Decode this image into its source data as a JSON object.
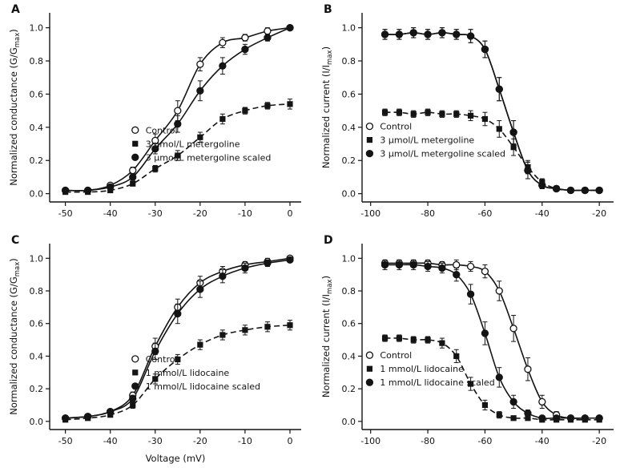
{
  "figure": {
    "background": "#ffffff",
    "ink": "#141414"
  },
  "panels": [
    {
      "letter": "A"
    },
    {
      "letter": "B"
    },
    {
      "letter": "C"
    },
    {
      "letter": "D"
    }
  ],
  "chart_data": [
    {
      "id": "A",
      "type": "scatter",
      "title": "",
      "xlabel": "",
      "ylabel_parts": [
        {
          "t": "Normalized conductance (G/G"
        },
        {
          "t": "max",
          "sub": true
        },
        {
          "t": ")"
        }
      ],
      "xlim": [
        -53.5,
        2.5
      ],
      "xticks": [
        -50,
        -40,
        -30,
        -20,
        -10,
        0
      ],
      "ylim": [
        -0.05,
        1.09
      ],
      "yticks": [
        0,
        0.2,
        0.4,
        0.6,
        0.8,
        1
      ],
      "x": [
        -50,
        -45,
        -40,
        -35,
        -30,
        -25,
        -20,
        -15,
        -10,
        -5,
        0
      ],
      "legend": {
        "fx": 0.34,
        "fy": 0.62
      },
      "series": [
        {
          "name": "Control",
          "marker": "open-circle",
          "line": "solid",
          "values": [
            0.02,
            0.02,
            0.05,
            0.14,
            0.32,
            0.5,
            0.78,
            0.91,
            0.94,
            0.98,
            1.0
          ],
          "errors": [
            0.01,
            0.01,
            0.01,
            0.02,
            0.04,
            0.06,
            0.04,
            0.03,
            0.02,
            0.02,
            0.01
          ]
        },
        {
          "name": "3 μmol/L metergoline",
          "marker": "filled-square",
          "line": "dashed",
          "values": [
            0.01,
            0.01,
            0.02,
            0.06,
            0.15,
            0.23,
            0.34,
            0.45,
            0.5,
            0.53,
            0.54
          ],
          "errors": [
            0.01,
            0.01,
            0.01,
            0.01,
            0.02,
            0.03,
            0.03,
            0.03,
            0.02,
            0.02,
            0.03
          ]
        },
        {
          "name": "3 μmol/L metergoline scaled",
          "marker": "filled-circle",
          "line": "solid",
          "values": [
            0.02,
            0.02,
            0.04,
            0.1,
            0.27,
            0.42,
            0.62,
            0.77,
            0.87,
            0.94,
            1.0
          ],
          "errors": [
            0.01,
            0.01,
            0.01,
            0.02,
            0.03,
            0.05,
            0.06,
            0.05,
            0.03,
            0.02,
            0.01
          ]
        }
      ]
    },
    {
      "id": "B",
      "type": "scatter",
      "title": "",
      "xlabel": "",
      "ylabel_parts": [
        {
          "t": "Normalized current (I/I"
        },
        {
          "t": "max",
          "sub": true
        },
        {
          "t": ")"
        }
      ],
      "xlim": [
        -103,
        -15
      ],
      "xticks": [
        -100,
        -80,
        -60,
        -40,
        -20
      ],
      "ylim": [
        -0.05,
        1.09
      ],
      "yticks": [
        0,
        0.2,
        0.4,
        0.6,
        0.8,
        1
      ],
      "x": [
        -95,
        -90,
        -85,
        -80,
        -75,
        -70,
        -65,
        -60,
        -55,
        -50,
        -45,
        -40,
        -35,
        -30,
        -25,
        -20
      ],
      "legend": {
        "fx": 0.03,
        "fy": 0.6
      },
      "series": [
        {
          "name": "Control",
          "marker": "open-circle",
          "line": "solid",
          "values": [
            0.96,
            0.96,
            0.97,
            0.96,
            0.97,
            0.96,
            0.95,
            0.87,
            0.63,
            0.37,
            0.14,
            0.05,
            0.03,
            0.02,
            0.02,
            0.02
          ],
          "errors": [
            0.03,
            0.03,
            0.03,
            0.03,
            0.03,
            0.03,
            0.04,
            0.05,
            0.07,
            0.07,
            0.05,
            0.02,
            0.01,
            0.01,
            0.01,
            0.01
          ]
        },
        {
          "name": "3 μmol/L metergoline",
          "marker": "filled-square",
          "line": "dashed",
          "values": [
            0.49,
            0.49,
            0.48,
            0.49,
            0.48,
            0.48,
            0.47,
            0.45,
            0.39,
            0.28,
            0.16,
            0.07,
            0.03,
            0.02,
            0.02,
            0.02
          ],
          "errors": [
            0.02,
            0.02,
            0.02,
            0.02,
            0.02,
            0.02,
            0.03,
            0.04,
            0.05,
            0.05,
            0.04,
            0.02,
            0.01,
            0.01,
            0.01,
            0.01
          ]
        },
        {
          "name": "3 μmol/L metergoline scaled",
          "marker": "filled-circle",
          "line": "solid",
          "values": [
            0.96,
            0.96,
            0.97,
            0.96,
            0.97,
            0.96,
            0.95,
            0.87,
            0.63,
            0.37,
            0.14,
            0.05,
            0.03,
            0.02,
            0.02,
            0.02
          ],
          "errors": [
            0.03,
            0.03,
            0.03,
            0.03,
            0.03,
            0.03,
            0.04,
            0.05,
            0.07,
            0.07,
            0.05,
            0.02,
            0.01,
            0.01,
            0.01,
            0.01
          ]
        }
      ]
    },
    {
      "id": "C",
      "type": "scatter",
      "title": "",
      "xlabel": "Voltage (mV)",
      "ylabel_parts": [
        {
          "t": "Normalized conductance (G/G"
        },
        {
          "t": "max",
          "sub": true
        },
        {
          "t": ")"
        }
      ],
      "xlim": [
        -53.5,
        2.5
      ],
      "xticks": [
        -50,
        -40,
        -30,
        -20,
        -10,
        0
      ],
      "ylim": [
        -0.05,
        1.09
      ],
      "yticks": [
        0,
        0.2,
        0.4,
        0.6,
        0.8,
        1
      ],
      "x": [
        -50,
        -45,
        -40,
        -35,
        -30,
        -25,
        -20,
        -15,
        -10,
        -5,
        0
      ],
      "legend": {
        "fx": 0.34,
        "fy": 0.62
      },
      "series": [
        {
          "name": "Control",
          "marker": "open-circle",
          "line": "solid",
          "values": [
            0.02,
            0.03,
            0.06,
            0.16,
            0.46,
            0.7,
            0.85,
            0.92,
            0.96,
            0.98,
            1.0
          ],
          "errors": [
            0.01,
            0.01,
            0.01,
            0.02,
            0.05,
            0.05,
            0.04,
            0.03,
            0.02,
            0.02,
            0.01
          ]
        },
        {
          "name": "1 mmol/L lidocaine",
          "marker": "filled-square",
          "line": "dashed",
          "values": [
            0.01,
            0.02,
            0.04,
            0.1,
            0.26,
            0.38,
            0.47,
            0.53,
            0.56,
            0.58,
            0.59
          ],
          "errors": [
            0.01,
            0.01,
            0.01,
            0.02,
            0.03,
            0.03,
            0.03,
            0.03,
            0.03,
            0.03,
            0.03
          ]
        },
        {
          "name": "1 mmol/L lidocaine scaled",
          "marker": "filled-circle",
          "line": "solid",
          "values": [
            0.02,
            0.03,
            0.06,
            0.14,
            0.43,
            0.66,
            0.81,
            0.89,
            0.94,
            0.97,
            0.99
          ],
          "errors": [
            0.01,
            0.01,
            0.01,
            0.02,
            0.05,
            0.06,
            0.05,
            0.04,
            0.03,
            0.02,
            0.01
          ]
        }
      ]
    },
    {
      "id": "D",
      "type": "scatter",
      "title": "",
      "xlabel": "",
      "ylabel_parts": [
        {
          "t": "Normalized current (I/I"
        },
        {
          "t": "max",
          "sub": true
        },
        {
          "t": ")"
        }
      ],
      "xlim": [
        -103,
        -15
      ],
      "xticks": [
        -100,
        -80,
        -60,
        -40,
        -20
      ],
      "ylim": [
        -0.05,
        1.09
      ],
      "yticks": [
        0,
        0.2,
        0.4,
        0.6,
        0.8,
        1
      ],
      "x": [
        -95,
        -90,
        -85,
        -80,
        -75,
        -70,
        -65,
        -60,
        -55,
        -50,
        -45,
        -40,
        -35,
        -30,
        -25,
        -20
      ],
      "legend": {
        "fx": 0.03,
        "fy": 0.6
      },
      "series": [
        {
          "name": "Control",
          "marker": "open-circle",
          "line": "solid",
          "values": [
            0.97,
            0.97,
            0.97,
            0.97,
            0.96,
            0.96,
            0.95,
            0.92,
            0.8,
            0.57,
            0.32,
            0.12,
            0.04,
            0.02,
            0.02,
            0.02
          ],
          "errors": [
            0.02,
            0.02,
            0.02,
            0.02,
            0.02,
            0.03,
            0.03,
            0.04,
            0.06,
            0.08,
            0.07,
            0.04,
            0.02,
            0.01,
            0.01,
            0.01
          ]
        },
        {
          "name": "1 mmol/L lidocaine",
          "marker": "filled-square",
          "line": "dashed",
          "values": [
            0.51,
            0.51,
            0.5,
            0.5,
            0.48,
            0.4,
            0.23,
            0.1,
            0.04,
            0.02,
            0.02,
            0.01,
            0.01,
            0.01,
            0.01,
            0.01
          ],
          "errors": [
            0.02,
            0.02,
            0.02,
            0.02,
            0.03,
            0.04,
            0.04,
            0.03,
            0.02,
            0.01,
            0.01,
            0.01,
            0.01,
            0.01,
            0.01,
            0.01
          ]
        },
        {
          "name": "1 mmol/L lidocaine scaled",
          "marker": "filled-circle",
          "line": "solid",
          "values": [
            0.96,
            0.96,
            0.96,
            0.95,
            0.94,
            0.9,
            0.78,
            0.54,
            0.27,
            0.12,
            0.05,
            0.02,
            0.02,
            0.02,
            0.02,
            0.02
          ],
          "errors": [
            0.03,
            0.03,
            0.03,
            0.03,
            0.03,
            0.04,
            0.06,
            0.07,
            0.06,
            0.04,
            0.02,
            0.01,
            0.01,
            0.01,
            0.01,
            0.01
          ]
        }
      ]
    }
  ]
}
